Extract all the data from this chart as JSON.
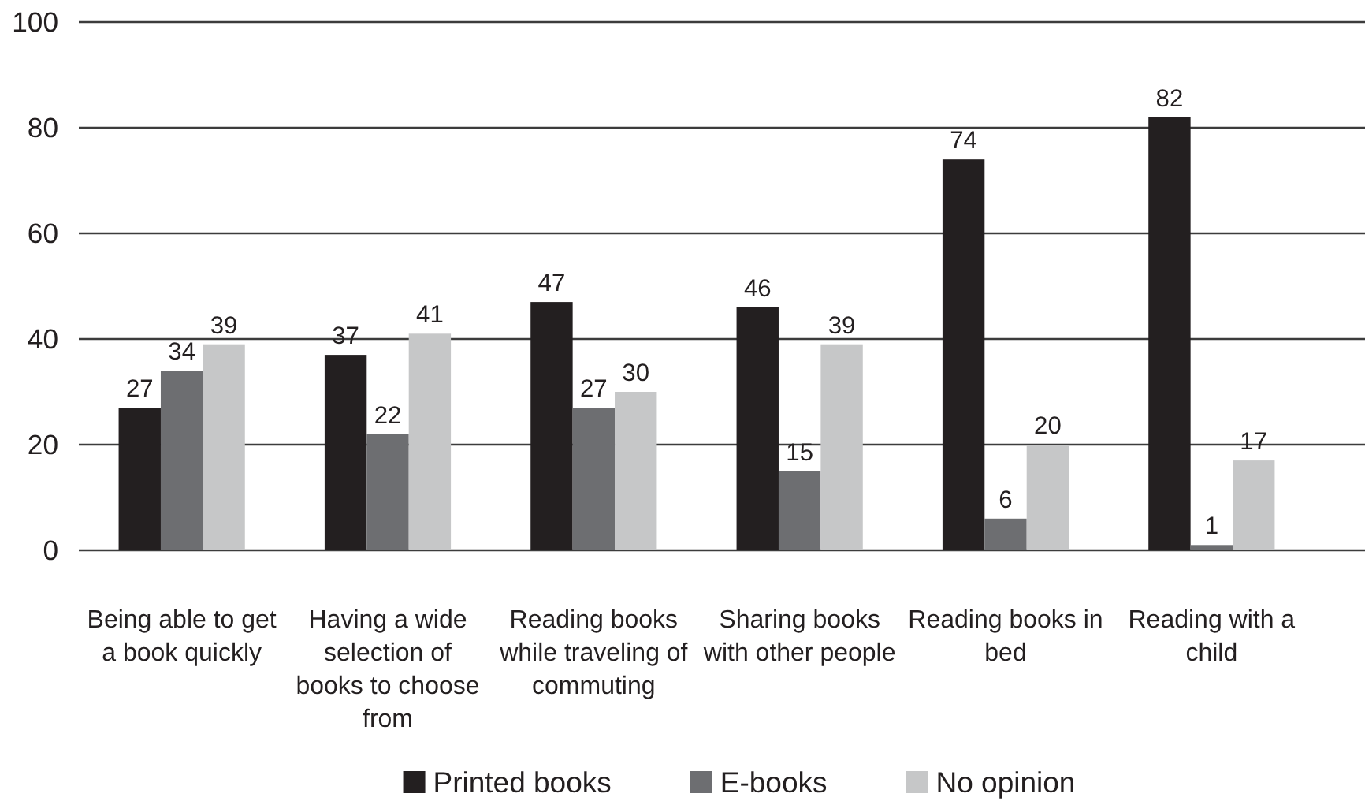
{
  "chart_data": {
    "type": "bar",
    "categories": [
      "Being able to get a book quickly",
      "Having a wide selection of books to choose from",
      "Reading books while traveling of commuting",
      "Sharing books with other people",
      "Reading books in bed",
      "Reading with a child"
    ],
    "series": [
      {
        "name": "Printed books",
        "color": "#231f20",
        "values": [
          27,
          37,
          47,
          46,
          74,
          82
        ]
      },
      {
        "name": "E-books",
        "color": "#6d6e71",
        "values": [
          34,
          22,
          27,
          15,
          6,
          1
        ]
      },
      {
        "name": "No opinion",
        "color": "#c6c7c8",
        "values": [
          39,
          41,
          30,
          39,
          20,
          17
        ]
      }
    ],
    "ylim": [
      0,
      100
    ],
    "yticks": [
      0,
      20,
      40,
      60,
      80,
      100
    ],
    "grid": "y",
    "legend": "bottom",
    "data_labels": true
  }
}
